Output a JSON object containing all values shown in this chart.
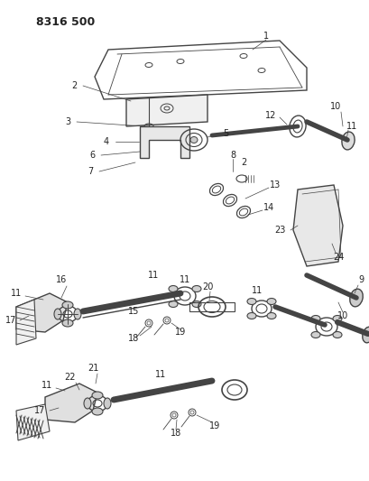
{
  "title": "8316 500",
  "bg_color": "#ffffff",
  "line_color": "#444444",
  "text_color": "#222222",
  "fig_width": 4.1,
  "fig_height": 5.33,
  "dpi": 100
}
